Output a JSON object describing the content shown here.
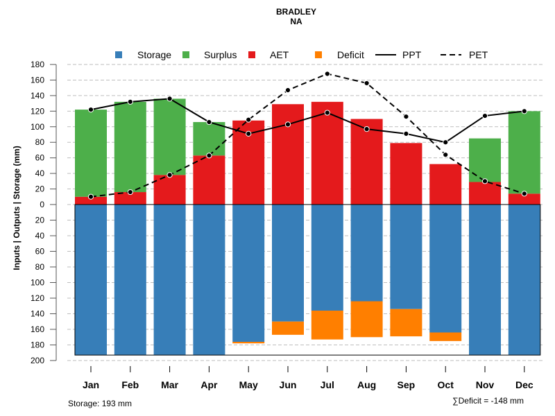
{
  "chart_data": {
    "type": "bar",
    "title": "BRADLEY",
    "subtitle": "NA",
    "ylabel": "Inputs | Outputs | Storage    (mm)",
    "xlabel": "",
    "ylim_top": [
      0,
      180
    ],
    "ylim_bottom": [
      0,
      200
    ],
    "yticks_top": [
      "0",
      "20",
      "40",
      "60",
      "80",
      "100",
      "120",
      "140",
      "160",
      "180"
    ],
    "yticks_bottom": [
      "20",
      "40",
      "60",
      "80",
      "100",
      "120",
      "140",
      "160",
      "180",
      "200"
    ],
    "grid": true,
    "legend_position": "top",
    "categories": [
      "Jan",
      "Feb",
      "Mar",
      "Apr",
      "May",
      "Jun",
      "Jul",
      "Aug",
      "Sep",
      "Oct",
      "Nov",
      "Dec"
    ],
    "legend": [
      {
        "name": "Storage",
        "kind": "box",
        "color": "#377eb8"
      },
      {
        "name": "Surplus",
        "kind": "box",
        "color": "#4daf4a"
      },
      {
        "name": "AET",
        "kind": "box",
        "color": "#e41a1c"
      },
      {
        "name": "Deficit",
        "kind": "box",
        "color": "#ff7f00"
      },
      {
        "name": "PPT",
        "kind": "solid-line",
        "color": "#000000"
      },
      {
        "name": "PET",
        "kind": "dashed-line",
        "color": "#000000"
      }
    ],
    "series": [
      {
        "name": "AET",
        "color": "#e41a1c",
        "stack": "top",
        "values": [
          10,
          16,
          38,
          63,
          108,
          129,
          132,
          110,
          79,
          52,
          29,
          14
        ]
      },
      {
        "name": "Surplus",
        "color": "#4daf4a",
        "stack": "top",
        "values": [
          112,
          116,
          98,
          43,
          0,
          0,
          0,
          0,
          0,
          0,
          56,
          106
        ]
      },
      {
        "name": "Storage",
        "color": "#377eb8",
        "stack": "bottom",
        "values": [
          193,
          193,
          193,
          193,
          176,
          150,
          136,
          124,
          134,
          164,
          193,
          193
        ]
      },
      {
        "name": "Deficit",
        "color": "#ff7f00",
        "stack": "bottom",
        "values": [
          0,
          0,
          0,
          0,
          2,
          17,
          37,
          46,
          35,
          11,
          0,
          0
        ]
      },
      {
        "name": "PPT",
        "color": "#000000",
        "type": "line",
        "dashed": false,
        "values": [
          122,
          132,
          136,
          106,
          91,
          103,
          118,
          97,
          91,
          80,
          114,
          120
        ]
      },
      {
        "name": "PET",
        "color": "#000000",
        "type": "line",
        "dashed": true,
        "values": [
          10,
          16,
          38,
          63,
          109,
          147,
          168,
          156,
          113,
          64,
          30,
          14
        ]
      }
    ],
    "storage_capacity": 193,
    "annotations": {
      "storage": "Storage: 193 mm",
      "deficit_sum": "∑Deficit = -148 mm"
    }
  }
}
